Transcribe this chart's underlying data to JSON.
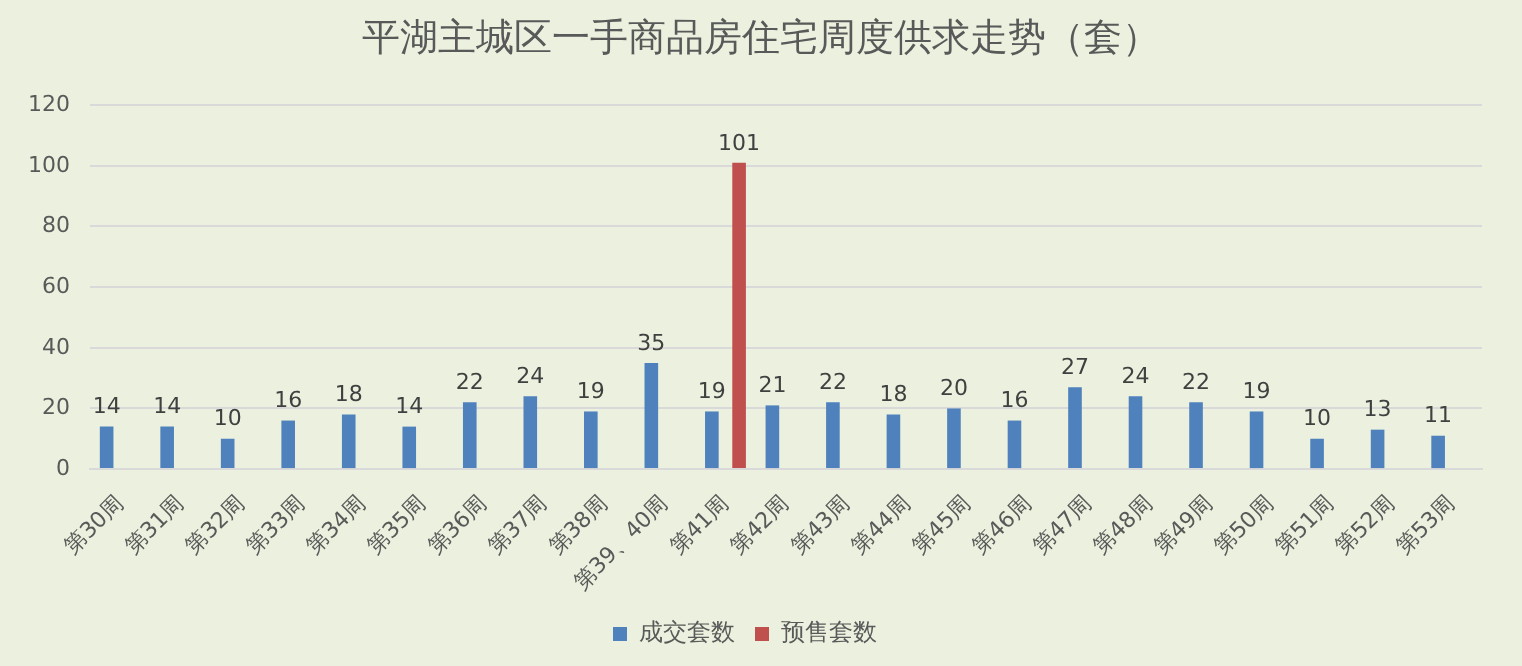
{
  "chart_data": {
    "type": "bar",
    "title": "平湖主城区一手商品房住宅周度供求走势（套）",
    "categories": [
      "第30周",
      "第31周",
      "第32周",
      "第33周",
      "第34周",
      "第35周",
      "第36周",
      "第37周",
      "第38周",
      "第39、40周",
      "第41周",
      "第42周",
      "第43周",
      "第44周",
      "第45周",
      "第46周",
      "第47周",
      "第48周",
      "第49周",
      "第50周",
      "第51周",
      "第52周",
      "第53周"
    ],
    "series": [
      {
        "name": "成交套数",
        "color": "#4f81bd",
        "values": [
          14,
          14,
          10,
          16,
          18,
          14,
          22,
          24,
          19,
          35,
          19,
          21,
          22,
          18,
          20,
          16,
          27,
          24,
          22,
          19,
          10,
          13,
          11
        ]
      },
      {
        "name": "预售套数",
        "color": "#c0504d",
        "values": [
          null,
          null,
          null,
          null,
          null,
          null,
          null,
          null,
          null,
          null,
          101,
          null,
          null,
          null,
          null,
          null,
          null,
          null,
          null,
          null,
          null,
          null,
          null
        ]
      }
    ],
    "ylim": [
      0,
      120
    ],
    "yticks": [
      0,
      20,
      40,
      60,
      80,
      100,
      120
    ],
    "grid": "y",
    "legend": "bottom",
    "data_labels": true
  }
}
